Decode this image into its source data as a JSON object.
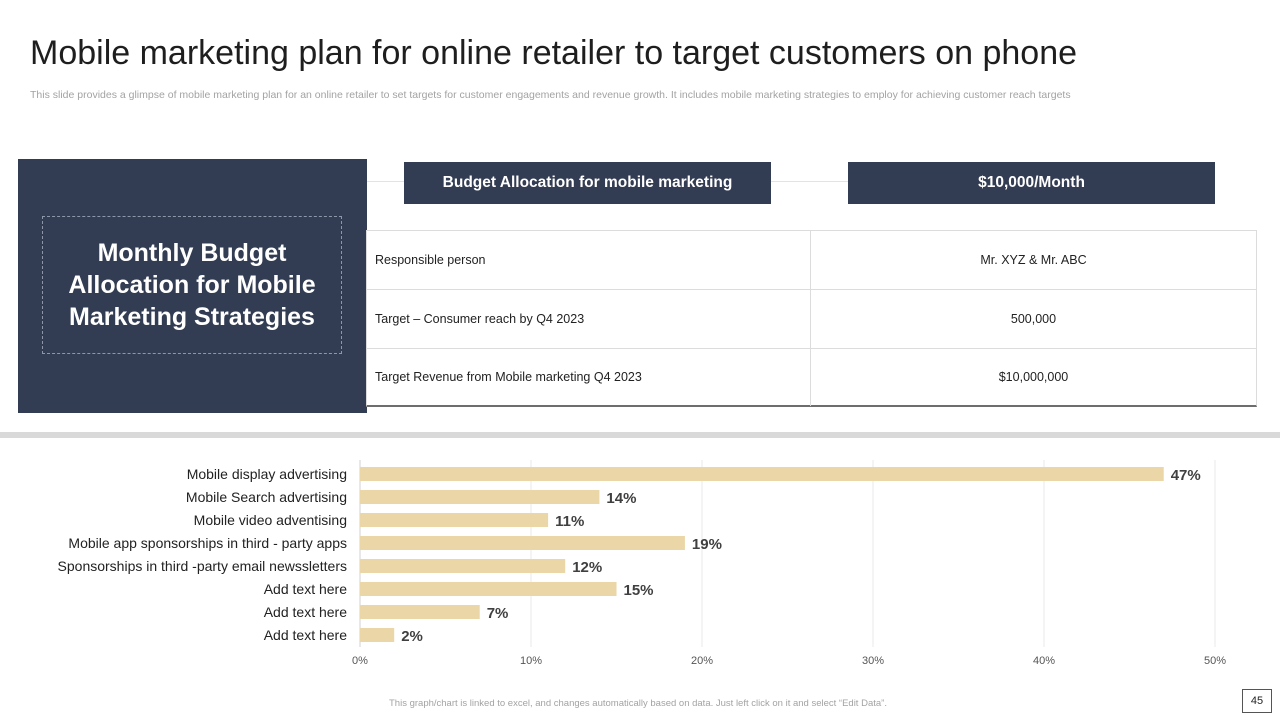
{
  "slide": {
    "title": "Mobile marketing plan for online retailer to target customers on phone",
    "subtitle": "This slide provides a glimpse of mobile marketing plan for an online retailer to set targets for customer engagements and revenue growth. It includes mobile marketing strategies to employ for achieving customer reach targets",
    "panel_heading": "Monthly Budget Allocation for Mobile Marketing Strategies",
    "budget_label": "Budget Allocation for mobile marketing",
    "budget_value": "$10,000/Month",
    "table": [
      {
        "label": "Responsible  person",
        "value": "Mr. XYZ  & Mr. ABC"
      },
      {
        "label": "Target  – Consumer  reach  by Q4  2023",
        "value": "500,000"
      },
      {
        "label": "Target  Revenue  from  Mobile  marketing  Q4  2023",
        "value": "$10,000,000"
      }
    ],
    "footer_note": "This graph/chart is linked to excel, and changes automatically based on data. Just left click on it and select “Edit Data”.",
    "page_number": "45"
  },
  "colors": {
    "navy": "#323c52",
    "bar": "#ead6a6",
    "grid": "#e9e9e9"
  },
  "chart_data": {
    "type": "bar",
    "orientation": "horizontal",
    "categories": [
      "Mobile display advertising",
      "Mobile Search advertising",
      "Mobile video adventising",
      "Mobile app sponsorships in third - party apps",
      "Sponsorships in third -party email newssletters",
      "Add text here",
      "Add text here",
      "Add text here"
    ],
    "values": [
      47,
      14,
      11,
      19,
      12,
      15,
      7,
      2
    ],
    "value_labels": [
      "47%",
      "14%",
      "11%",
      "19%",
      "12%",
      "15%",
      "7%",
      "2%"
    ],
    "x_ticks": [
      "0%",
      "10%",
      "20%",
      "30%",
      "40%",
      "50%"
    ],
    "xlim": [
      0,
      50
    ],
    "grid": true,
    "legend": false
  }
}
